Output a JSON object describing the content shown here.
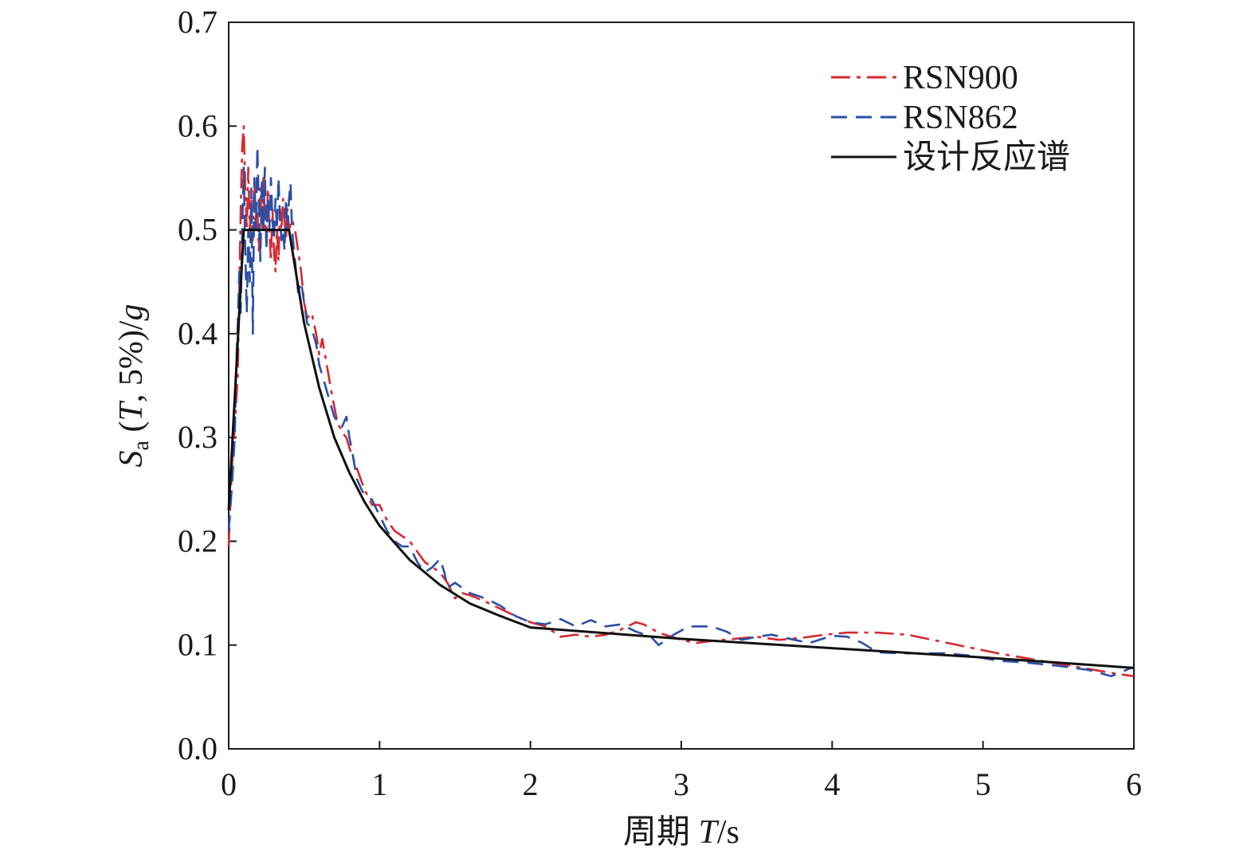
{
  "chart_data": {
    "type": "line",
    "xlabel": {
      "prefix": "周期 ",
      "var": "T",
      "unit": "/s"
    },
    "ylabel": {
      "S": "S",
      "sub": "a",
      "open": " (",
      "T": "T",
      "rest": ", 5%)/",
      "g": "g"
    },
    "xlim": [
      0,
      6
    ],
    "ylim": [
      0,
      0.7
    ],
    "x_ticks": [
      "0",
      "1",
      "2",
      "3",
      "4",
      "5",
      "6"
    ],
    "y_ticks": [
      "0.0",
      "0.1",
      "0.2",
      "0.3",
      "0.4",
      "0.5",
      "0.6",
      "0.7"
    ],
    "grid": false,
    "legend_position": "top-right",
    "series": [
      {
        "name": "RSN900",
        "color": "#d7282f",
        "style": "dash-dot",
        "points": [
          [
            0,
            0.195
          ],
          [
            0.02,
            0.27
          ],
          [
            0.04,
            0.31
          ],
          [
            0.06,
            0.36
          ],
          [
            0.07,
            0.44
          ],
          [
            0.08,
            0.52
          ],
          [
            0.09,
            0.58
          ],
          [
            0.1,
            0.6
          ],
          [
            0.11,
            0.54
          ],
          [
            0.12,
            0.5
          ],
          [
            0.13,
            0.56
          ],
          [
            0.14,
            0.5
          ],
          [
            0.15,
            0.53
          ],
          [
            0.16,
            0.49
          ],
          [
            0.17,
            0.55
          ],
          [
            0.18,
            0.5
          ],
          [
            0.19,
            0.52
          ],
          [
            0.2,
            0.48
          ],
          [
            0.21,
            0.54
          ],
          [
            0.22,
            0.5
          ],
          [
            0.23,
            0.55
          ],
          [
            0.24,
            0.51
          ],
          [
            0.25,
            0.49
          ],
          [
            0.26,
            0.54
          ],
          [
            0.27,
            0.5
          ],
          [
            0.28,
            0.47
          ],
          [
            0.29,
            0.52
          ],
          [
            0.3,
            0.48
          ],
          [
            0.31,
            0.46
          ],
          [
            0.32,
            0.5
          ],
          [
            0.33,
            0.47
          ],
          [
            0.34,
            0.52
          ],
          [
            0.35,
            0.5
          ],
          [
            0.36,
            0.53
          ],
          [
            0.37,
            0.51
          ],
          [
            0.38,
            0.49
          ],
          [
            0.39,
            0.52
          ],
          [
            0.4,
            0.5
          ],
          [
            0.42,
            0.51
          ],
          [
            0.44,
            0.5
          ],
          [
            0.46,
            0.48
          ],
          [
            0.48,
            0.46
          ],
          [
            0.5,
            0.43
          ],
          [
            0.52,
            0.415
          ],
          [
            0.55,
            0.42
          ],
          [
            0.58,
            0.4
          ],
          [
            0.6,
            0.38
          ],
          [
            0.62,
            0.395
          ],
          [
            0.65,
            0.37
          ],
          [
            0.68,
            0.345
          ],
          [
            0.7,
            0.33
          ],
          [
            0.72,
            0.315
          ],
          [
            0.75,
            0.305
          ],
          [
            0.78,
            0.3
          ],
          [
            0.8,
            0.29
          ],
          [
            0.85,
            0.27
          ],
          [
            0.9,
            0.25
          ],
          [
            0.95,
            0.235
          ],
          [
            1.0,
            0.235
          ],
          [
            1.05,
            0.22
          ],
          [
            1.1,
            0.21
          ],
          [
            1.15,
            0.205
          ],
          [
            1.2,
            0.2
          ],
          [
            1.25,
            0.19
          ],
          [
            1.3,
            0.18
          ],
          [
            1.35,
            0.175
          ],
          [
            1.4,
            0.17
          ],
          [
            1.45,
            0.16
          ],
          [
            1.5,
            0.145
          ],
          [
            1.55,
            0.15
          ],
          [
            1.6,
            0.148
          ],
          [
            1.7,
            0.142
          ],
          [
            1.8,
            0.135
          ],
          [
            1.9,
            0.128
          ],
          [
            2.0,
            0.122
          ],
          [
            2.1,
            0.118
          ],
          [
            2.2,
            0.108
          ],
          [
            2.3,
            0.11
          ],
          [
            2.4,
            0.108
          ],
          [
            2.5,
            0.11
          ],
          [
            2.6,
            0.115
          ],
          [
            2.7,
            0.122
          ],
          [
            2.75,
            0.12
          ],
          [
            2.85,
            0.112
          ],
          [
            3.0,
            0.105
          ],
          [
            3.1,
            0.102
          ],
          [
            3.2,
            0.104
          ],
          [
            3.35,
            0.106
          ],
          [
            3.5,
            0.108
          ],
          [
            3.65,
            0.105
          ],
          [
            3.8,
            0.107
          ],
          [
            3.95,
            0.11
          ],
          [
            4.1,
            0.112
          ],
          [
            4.3,
            0.112
          ],
          [
            4.5,
            0.11
          ],
          [
            4.7,
            0.104
          ],
          [
            4.9,
            0.098
          ],
          [
            5.1,
            0.092
          ],
          [
            5.3,
            0.087
          ],
          [
            5.5,
            0.082
          ],
          [
            5.7,
            0.077
          ],
          [
            5.9,
            0.072
          ],
          [
            6.0,
            0.07
          ]
        ]
      },
      {
        "name": "RSN862",
        "color": "#2b4fa6",
        "style": "dash",
        "points": [
          [
            0,
            0.21
          ],
          [
            0.02,
            0.25
          ],
          [
            0.04,
            0.3
          ],
          [
            0.05,
            0.37
          ],
          [
            0.06,
            0.41
          ],
          [
            0.07,
            0.46
          ],
          [
            0.08,
            0.42
          ],
          [
            0.09,
            0.5
          ],
          [
            0.1,
            0.56
          ],
          [
            0.11,
            0.48
          ],
          [
            0.12,
            0.42
          ],
          [
            0.13,
            0.5
          ],
          [
            0.14,
            0.45
          ],
          [
            0.15,
            0.54
          ],
          [
            0.16,
            0.4
          ],
          [
            0.17,
            0.55
          ],
          [
            0.18,
            0.5
          ],
          [
            0.19,
            0.58
          ],
          [
            0.2,
            0.52
          ],
          [
            0.21,
            0.47
          ],
          [
            0.22,
            0.55
          ],
          [
            0.23,
            0.5
          ],
          [
            0.24,
            0.56
          ],
          [
            0.25,
            0.48
          ],
          [
            0.26,
            0.53
          ],
          [
            0.27,
            0.5
          ],
          [
            0.28,
            0.55
          ],
          [
            0.29,
            0.51
          ],
          [
            0.3,
            0.49
          ],
          [
            0.31,
            0.53
          ],
          [
            0.32,
            0.5
          ],
          [
            0.33,
            0.55
          ],
          [
            0.34,
            0.51
          ],
          [
            0.35,
            0.49
          ],
          [
            0.36,
            0.5
          ],
          [
            0.37,
            0.48
          ],
          [
            0.38,
            0.53
          ],
          [
            0.39,
            0.5
          ],
          [
            0.4,
            0.53
          ],
          [
            0.41,
            0.545
          ],
          [
            0.42,
            0.5
          ],
          [
            0.44,
            0.47
          ],
          [
            0.46,
            0.44
          ],
          [
            0.48,
            0.45
          ],
          [
            0.5,
            0.43
          ],
          [
            0.52,
            0.41
          ],
          [
            0.55,
            0.405
          ],
          [
            0.58,
            0.39
          ],
          [
            0.6,
            0.37
          ],
          [
            0.65,
            0.345
          ],
          [
            0.7,
            0.32
          ],
          [
            0.75,
            0.31
          ],
          [
            0.78,
            0.32
          ],
          [
            0.8,
            0.3
          ],
          [
            0.82,
            0.285
          ],
          [
            0.85,
            0.26
          ],
          [
            0.88,
            0.25
          ],
          [
            0.9,
            0.245
          ],
          [
            0.95,
            0.24
          ],
          [
            1.0,
            0.225
          ],
          [
            1.05,
            0.21
          ],
          [
            1.1,
            0.2
          ],
          [
            1.15,
            0.195
          ],
          [
            1.2,
            0.195
          ],
          [
            1.25,
            0.18
          ],
          [
            1.3,
            0.17
          ],
          [
            1.35,
            0.175
          ],
          [
            1.4,
            0.183
          ],
          [
            1.43,
            0.17
          ],
          [
            1.45,
            0.155
          ],
          [
            1.5,
            0.16
          ],
          [
            1.6,
            0.15
          ],
          [
            1.7,
            0.145
          ],
          [
            1.8,
            0.138
          ],
          [
            1.9,
            0.128
          ],
          [
            2.0,
            0.122
          ],
          [
            2.1,
            0.12
          ],
          [
            2.2,
            0.125
          ],
          [
            2.3,
            0.118
          ],
          [
            2.4,
            0.124
          ],
          [
            2.5,
            0.118
          ],
          [
            2.6,
            0.12
          ],
          [
            2.7,
            0.113
          ],
          [
            2.8,
            0.108
          ],
          [
            2.85,
            0.1
          ],
          [
            2.95,
            0.11
          ],
          [
            3.05,
            0.118
          ],
          [
            3.2,
            0.118
          ],
          [
            3.3,
            0.113
          ],
          [
            3.4,
            0.105
          ],
          [
            3.5,
            0.108
          ],
          [
            3.6,
            0.11
          ],
          [
            3.75,
            0.105
          ],
          [
            3.85,
            0.102
          ],
          [
            4.0,
            0.109
          ],
          [
            4.1,
            0.108
          ],
          [
            4.2,
            0.102
          ],
          [
            4.3,
            0.093
          ],
          [
            4.45,
            0.092
          ],
          [
            4.6,
            0.092
          ],
          [
            4.75,
            0.092
          ],
          [
            4.9,
            0.09
          ],
          [
            5.1,
            0.085
          ],
          [
            5.3,
            0.083
          ],
          [
            5.5,
            0.08
          ],
          [
            5.7,
            0.076
          ],
          [
            5.85,
            0.07
          ],
          [
            6.0,
            0.079
          ]
        ]
      },
      {
        "name": "设计反应谱",
        "color": "#111111",
        "style": "solid",
        "points": [
          [
            0,
            0.23
          ],
          [
            0.1,
            0.5
          ],
          [
            0.4,
            0.5
          ],
          [
            0.45,
            0.455
          ],
          [
            0.5,
            0.41
          ],
          [
            0.6,
            0.348
          ],
          [
            0.7,
            0.3
          ],
          [
            0.8,
            0.266
          ],
          [
            0.9,
            0.238
          ],
          [
            1.0,
            0.215
          ],
          [
            1.2,
            0.182
          ],
          [
            1.4,
            0.158
          ],
          [
            1.6,
            0.14
          ],
          [
            1.8,
            0.128
          ],
          [
            2.0,
            0.117
          ],
          [
            3.0,
            0.106
          ],
          [
            4.0,
            0.097
          ],
          [
            5.0,
            0.088
          ],
          [
            6.0,
            0.078
          ]
        ]
      }
    ]
  }
}
